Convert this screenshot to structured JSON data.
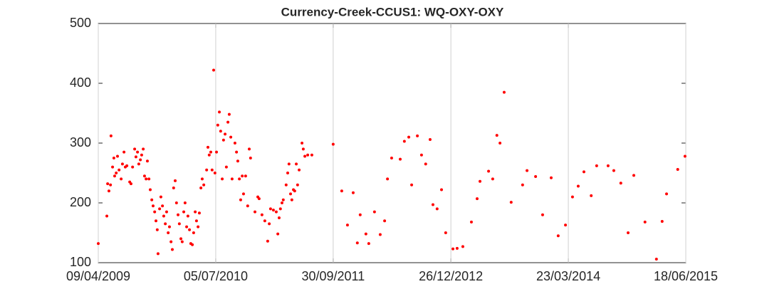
{
  "chart_data": {
    "type": "scatter",
    "title": "Currency-Creek-CCUS1: WQ-OXY-OXY",
    "color": "#ff0000",
    "grid": "x",
    "xlim": [
      "2009-04-09",
      "2015-06-18"
    ],
    "xticks": [
      {
        "value": "2009-04-09",
        "label": "09/04/2009"
      },
      {
        "value": "2010-07-05",
        "label": "05/07/2010"
      },
      {
        "value": "2011-09-30",
        "label": "30/09/2011"
      },
      {
        "value": "2012-12-26",
        "label": "26/12/2012"
      },
      {
        "value": "2014-03-23",
        "label": "23/03/2014"
      },
      {
        "value": "2015-06-18",
        "label": "18/06/2015"
      }
    ],
    "ylim": [
      100,
      500
    ],
    "yticks": [
      100,
      200,
      300,
      400,
      500
    ],
    "x": [
      "2009-04-09",
      "2009-05-12",
      "2009-05-15",
      "2009-05-20",
      "2009-05-26",
      "2009-05-28",
      "2009-06-03",
      "2009-06-08",
      "2009-06-11",
      "2009-06-17",
      "2009-06-22",
      "2009-06-28",
      "2009-07-06",
      "2009-07-11",
      "2009-07-17",
      "2009-07-22",
      "2009-07-28",
      "2009-08-08",
      "2009-08-13",
      "2009-08-19",
      "2009-08-27",
      "2009-09-01",
      "2009-09-07",
      "2009-09-12",
      "2009-09-18",
      "2009-09-23",
      "2009-09-29",
      "2009-10-04",
      "2009-10-10",
      "2009-10-15",
      "2009-10-21",
      "2009-10-26",
      "2009-11-01",
      "2009-11-06",
      "2009-11-12",
      "2009-11-17",
      "2009-11-22",
      "2009-11-25",
      "2009-12-01",
      "2009-12-06",
      "2009-12-12",
      "2009-12-17",
      "2009-12-23",
      "2009-12-28",
      "2010-01-03",
      "2010-01-08",
      "2010-01-14",
      "2010-01-19",
      "2010-01-24",
      "2010-01-30",
      "2010-02-04",
      "2010-02-10",
      "2010-02-15",
      "2010-02-21",
      "2010-02-26",
      "2010-03-04",
      "2010-03-09",
      "2010-03-15",
      "2010-03-20",
      "2010-03-26",
      "2010-03-31",
      "2010-04-06",
      "2010-04-11",
      "2010-04-17",
      "2010-04-22",
      "2010-04-28",
      "2010-05-03",
      "2010-05-09",
      "2010-05-14",
      "2010-05-20",
      "2010-05-31",
      "2010-06-05",
      "2010-06-10",
      "2010-06-16",
      "2010-06-21",
      "2010-06-27",
      "2010-07-02",
      "2010-07-08",
      "2010-07-13",
      "2010-07-19",
      "2010-07-24",
      "2010-07-30",
      "2010-08-04",
      "2010-08-10",
      "2010-08-15",
      "2010-08-21",
      "2010-08-26",
      "2010-09-01",
      "2010-09-06",
      "2010-09-17",
      "2010-09-23",
      "2010-09-28",
      "2010-10-04",
      "2010-10-09",
      "2010-10-15",
      "2010-10-20",
      "2010-10-28",
      "2010-11-05",
      "2010-11-11",
      "2010-11-16",
      "2010-12-03",
      "2010-12-14",
      "2010-12-19",
      "2010-12-30",
      "2011-01-10",
      "2011-01-21",
      "2011-01-27",
      "2011-02-01",
      "2011-02-12",
      "2011-02-23",
      "2011-03-01",
      "2011-03-06",
      "2011-03-11",
      "2011-03-17",
      "2011-03-22",
      "2011-04-02",
      "2011-04-08",
      "2011-04-13",
      "2011-04-19",
      "2011-04-24",
      "2011-04-30",
      "2011-05-05",
      "2011-05-11",
      "2011-05-16",
      "2011-05-22",
      "2011-06-02",
      "2011-06-07",
      "2011-06-13",
      "2011-06-24",
      "2011-07-10",
      "2011-09-30",
      "2011-11-02",
      "2011-11-24",
      "2011-12-16",
      "2012-01-01",
      "2012-01-12",
      "2012-02-03",
      "2012-02-14",
      "2012-03-07",
      "2012-03-29",
      "2012-04-15",
      "2012-04-26",
      "2012-05-12",
      "2012-06-14",
      "2012-06-30",
      "2012-07-17",
      "2012-07-28",
      "2012-08-19",
      "2012-09-04",
      "2012-09-20",
      "2012-10-07",
      "2012-10-18",
      "2012-11-03",
      "2012-11-20",
      "2012-12-06",
      "2013-01-03",
      "2013-01-19",
      "2013-02-10",
      "2013-03-15",
      "2013-04-06",
      "2013-04-17",
      "2013-05-20",
      "2013-06-05",
      "2013-06-21",
      "2013-07-03",
      "2013-07-19",
      "2013-08-15",
      "2013-09-28",
      "2013-10-15",
      "2013-11-17",
      "2013-12-14",
      "2014-01-16",
      "2014-02-12",
      "2014-03-12",
      "2014-04-08",
      "2014-04-30",
      "2014-05-22",
      "2014-06-19",
      "2014-07-10",
      "2014-08-23",
      "2014-09-14",
      "2014-10-11",
      "2014-11-08",
      "2014-11-30",
      "2015-01-12",
      "2015-02-25",
      "2015-03-19",
      "2015-04-05",
      "2015-05-18",
      "2015-06-15"
    ],
    "values": [
      132,
      178,
      232,
      220,
      230,
      312,
      260,
      275,
      245,
      250,
      278,
      255,
      240,
      265,
      285,
      260,
      262,
      235,
      232,
      260,
      290,
      277,
      285,
      265,
      272,
      280,
      290,
      245,
      240,
      270,
      240,
      222,
      205,
      195,
      185,
      170,
      155,
      115,
      190,
      210,
      195,
      178,
      165,
      185,
      150,
      160,
      135,
      122,
      225,
      237,
      200,
      180,
      165,
      140,
      135,
      185,
      200,
      160,
      178,
      155,
      132,
      130,
      150,
      185,
      170,
      160,
      183,
      225,
      240,
      230,
      255,
      293,
      280,
      285,
      255,
      422,
      250,
      285,
      330,
      352,
      320,
      240,
      305,
      315,
      260,
      335,
      348,
      310,
      240,
      300,
      285,
      270,
      240,
      205,
      245,
      215,
      245,
      195,
      290,
      275,
      185,
      210,
      207,
      180,
      170,
      136,
      165,
      190,
      188,
      185,
      148,
      175,
      190,
      200,
      205,
      230,
      250,
      265,
      215,
      205,
      222,
      220,
      265,
      230,
      255,
      300,
      290,
      278,
      280,
      280,
      298,
      220,
      163,
      217,
      133,
      180,
      148,
      132,
      185,
      147,
      170,
      240,
      275,
      273,
      303,
      310,
      230,
      312,
      280,
      265,
      306,
      197,
      190,
      222,
      150,
      123,
      124,
      127,
      168,
      207,
      236,
      253,
      240,
      313,
      300,
      385,
      201,
      230,
      254,
      244,
      180,
      242,
      145,
      163,
      210,
      228,
      252,
      212,
      262,
      262,
      254,
      233,
      150,
      246,
      168,
      106,
      169,
      215,
      256,
      278
    ]
  }
}
